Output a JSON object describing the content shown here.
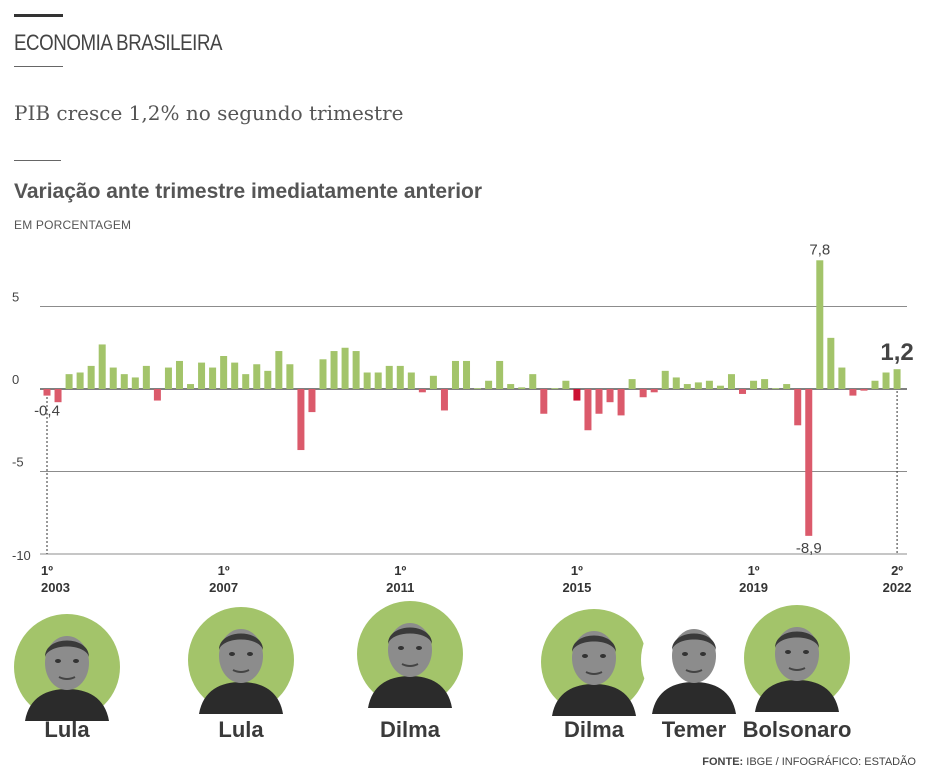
{
  "header": {
    "kicker": "ECONOMIA BRASILEIRA",
    "headline": "PIB cresce 1,2% no segundo trimestre"
  },
  "chart_data": {
    "type": "bar",
    "title": "Variação ante trimestre imediatamente anterior",
    "unit_label": "EM PORCENTAGEM",
    "xlabel": "",
    "ylabel": "",
    "ylim": [
      -10,
      8
    ],
    "y_ticks": [
      5,
      0,
      -5,
      -10
    ],
    "y_tick_labels": [
      "5",
      "0",
      "-5",
      "-10"
    ],
    "x_tick_labels": [
      {
        "quarter": "1º",
        "year": "2003"
      },
      {
        "quarter": "1º",
        "year": "2007"
      },
      {
        "quarter": "1º",
        "year": "2011"
      },
      {
        "quarter": "1º",
        "year": "2015"
      },
      {
        "quarter": "1º",
        "year": "2019"
      },
      {
        "quarter": "2º",
        "year": "2022"
      }
    ],
    "x_tick_index": [
      0,
      16,
      32,
      48,
      64,
      77
    ],
    "values": [
      -0.4,
      -0.8,
      0.9,
      1.0,
      1.4,
      2.7,
      1.3,
      0.9,
      0.7,
      1.4,
      -0.7,
      1.3,
      1.7,
      0.3,
      1.6,
      1.3,
      2.0,
      1.6,
      0.9,
      1.5,
      1.1,
      2.3,
      1.5,
      -3.7,
      -1.4,
      1.8,
      2.3,
      2.5,
      2.3,
      1.0,
      1.0,
      1.4,
      1.4,
      1.0,
      -0.2,
      0.8,
      -1.3,
      1.7,
      1.7,
      0.0,
      0.5,
      1.7,
      0.3,
      0.1,
      0.9,
      -1.5,
      0.0,
      0.5,
      -0.7,
      -2.5,
      -1.5,
      -0.8,
      -1.6,
      0.6,
      -0.5,
      -0.2,
      1.1,
      0.7,
      0.3,
      0.4,
      0.5,
      0.2,
      0.9,
      -0.3,
      0.5,
      0.6,
      0.0,
      0.3,
      -2.2,
      -8.9,
      7.8,
      3.1,
      1.3,
      -0.4,
      -0.1,
      0.5,
      1.0,
      1.2
    ],
    "negative_bar_indices": [
      0,
      1,
      10,
      23,
      24,
      34,
      36,
      45,
      48,
      49,
      50,
      51,
      52,
      54,
      55,
      63,
      68,
      69,
      73,
      74
    ],
    "recession_highlight_index": 48,
    "annotations": [
      {
        "index": 0,
        "label": "-0,4"
      },
      {
        "index": 69,
        "label": "-8,9"
      },
      {
        "index": 70,
        "label": "7,8"
      },
      {
        "index": 77,
        "label": "1,2"
      }
    ],
    "colors": {
      "positive": "#a3c46a",
      "negative": "#db5a6b",
      "highlight": "#cc1133",
      "grid": "#555555"
    }
  },
  "presidents": [
    {
      "name": "Lula",
      "icon": "lula-portrait"
    },
    {
      "name": "Lula",
      "icon": "lula-portrait-2"
    },
    {
      "name": "Dilma",
      "icon": "dilma-portrait"
    },
    {
      "name": "Dilma",
      "icon": "dilma-portrait-2"
    },
    {
      "name": "Temer",
      "icon": "temer-portrait"
    },
    {
      "name": "Bolsonaro",
      "icon": "bolsonaro-portrait"
    }
  ],
  "source": {
    "label": "FONTE:",
    "text": "IBGE  / INFOGRÁFICO: ESTADÃO"
  }
}
